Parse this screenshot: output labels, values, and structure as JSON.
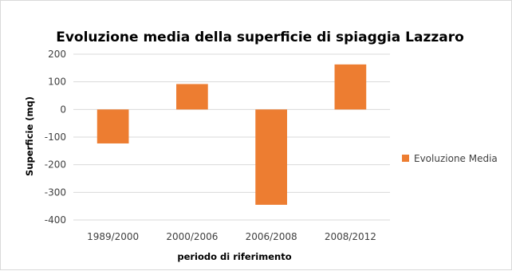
{
  "chart_data": {
    "type": "bar",
    "title": "Evoluzione media della superficie di spiaggia Lazzaro",
    "xlabel": "periodo di riferimento",
    "ylabel": "Superficie (mq)",
    "categories": [
      "1989/2000",
      "2000/2006",
      "2006/2008",
      "2008/2012"
    ],
    "series": [
      {
        "name": "Evoluzione Media",
        "values": [
          -123,
          92,
          -345,
          163
        ],
        "color": "#ED7D31"
      }
    ],
    "ylim": [
      -400,
      200
    ],
    "yticks": [
      200,
      100,
      0,
      -100,
      -200,
      -300,
      -400
    ],
    "grid": true,
    "legend": "right"
  }
}
